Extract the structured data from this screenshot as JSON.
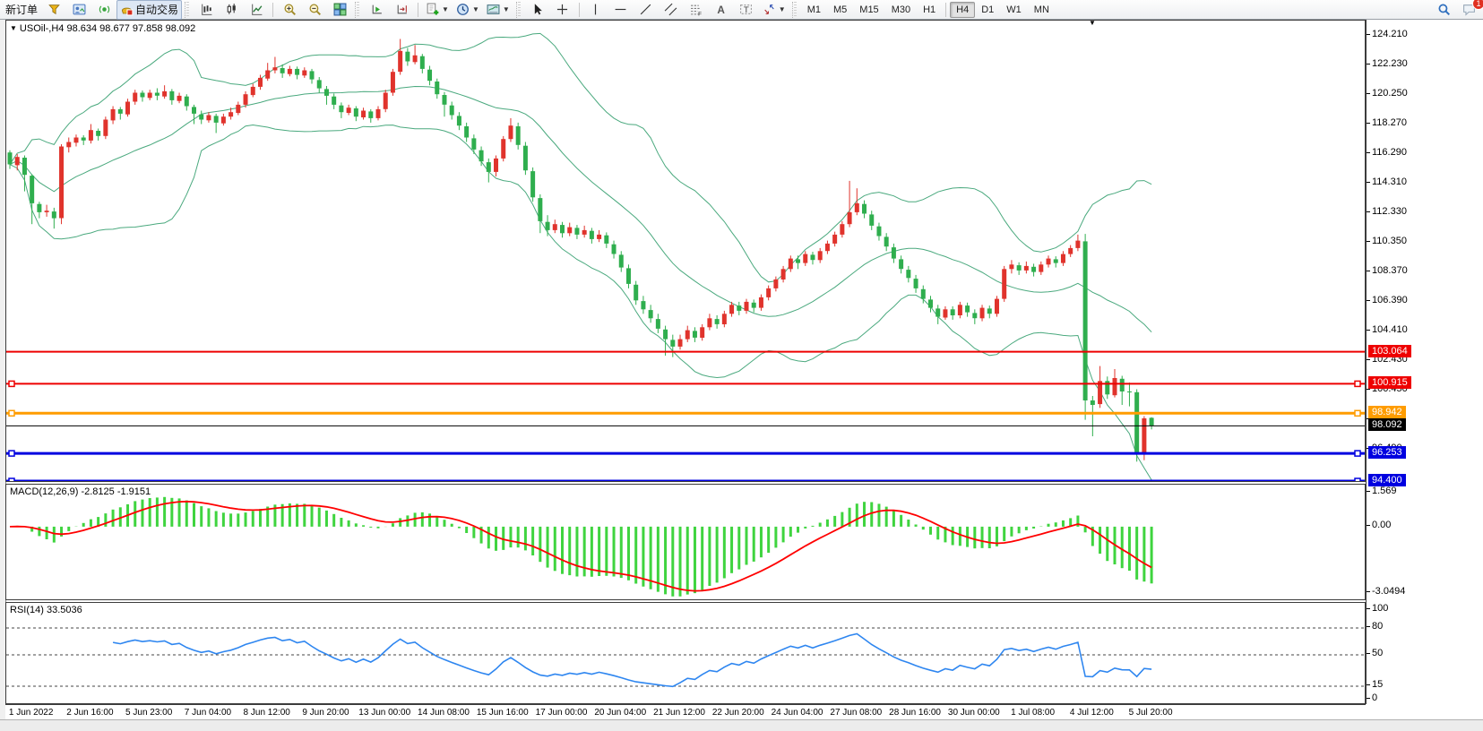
{
  "accent_colors": {
    "bull_candle": "#e0332c",
    "bear_candle": "#2fae4e",
    "bollinger": "#4aa97e",
    "macd_histogram": "#3fd43f",
    "macd_signal": "#ff0000",
    "rsi_line": "#2e86f0",
    "toolbar_bg": "#f2f2f2"
  },
  "toolbar": {
    "items": [
      {
        "name": "new-order-button",
        "label": "新订单"
      },
      {
        "name": "market-funnel-button",
        "icon": "funnel"
      },
      {
        "name": "profile-chart-button",
        "icon": "profile"
      },
      {
        "name": "broadcast-button",
        "icon": "broadcast"
      },
      {
        "name": "autotrading-button",
        "icon": "autotrade",
        "label": "自动交易",
        "active": true
      },
      {
        "grip": true
      },
      {
        "name": "bar-chart-button",
        "icon": "bars"
      },
      {
        "name": "candlestick-chart-button",
        "icon": "candles"
      },
      {
        "name": "line-chart-button",
        "icon": "linechart"
      },
      {
        "sep": true
      },
      {
        "name": "zoom-in-button",
        "icon": "zoomin"
      },
      {
        "name": "zoom-out-button",
        "icon": "zoomout"
      },
      {
        "name": "tile-windows-button",
        "icon": "tiles"
      },
      {
        "grip": true
      },
      {
        "name": "auto-scroll-button",
        "icon": "autoscroll"
      },
      {
        "name": "chart-shift-button",
        "icon": "chartshift"
      },
      {
        "sep": true
      },
      {
        "name": "indicators-button",
        "icon": "addind",
        "dropdown": true
      },
      {
        "name": "periods-button",
        "icon": "clock",
        "dropdown": true
      },
      {
        "name": "templates-button",
        "icon": "template",
        "dropdown": true
      },
      {
        "grip": true
      },
      {
        "name": "cursor-button",
        "icon": "cursor"
      },
      {
        "name": "crosshair-button",
        "icon": "crosshair"
      },
      {
        "sep": true
      },
      {
        "name": "vertical-line-button",
        "icon": "vline"
      },
      {
        "name": "horizontal-line-button",
        "icon": "hline"
      },
      {
        "name": "trendline-button",
        "icon": "trend"
      },
      {
        "name": "equidistant-channel-button",
        "icon": "channel"
      },
      {
        "name": "fibonacci-button",
        "icon": "fibo"
      },
      {
        "name": "text-button",
        "icon": "textA"
      },
      {
        "name": "text-label-button",
        "icon": "labelT"
      },
      {
        "name": "arrows-button",
        "icon": "arrows",
        "dropdown": true
      },
      {
        "grip": true
      },
      {
        "tf": "M1"
      },
      {
        "tf": "M5"
      },
      {
        "tf": "M15"
      },
      {
        "tf": "M30"
      },
      {
        "tf": "H1"
      },
      {
        "sep": true
      },
      {
        "tf": "H4",
        "active": true
      },
      {
        "tf": "D1"
      },
      {
        "tf": "W1"
      },
      {
        "tf": "MN"
      },
      {
        "spacer": true
      },
      {
        "name": "search-button",
        "icon": "search"
      },
      {
        "name": "notifications-button",
        "icon": "chat",
        "badge": "1"
      }
    ]
  },
  "chart": {
    "title_line": "USOil-,H4  98.634 98.677 97.858 98.092",
    "symbol": "USOil-",
    "timeframe": "H4"
  },
  "chart_data": {
    "type": "candlestick",
    "title": "USOil-,H4",
    "ohlc_display": {
      "open": "98.634",
      "high": "98.677",
      "low": "97.858",
      "close": "98.092"
    },
    "price_axis_ticks": [
      "124.210",
      "122.230",
      "120.250",
      "118.270",
      "116.290",
      "114.310",
      "112.330",
      "110.350",
      "108.370",
      "106.390",
      "104.410",
      "102.430",
      "100.450",
      "98.470",
      "96.490"
    ],
    "price_axis": {
      "top_price": 125.23,
      "bottom_price": 94.4,
      "tick_start": 124.21,
      "tick_step": 1.98
    },
    "hlines": [
      {
        "price": 103.064,
        "label": "103.064",
        "color": "#ee0000",
        "width": 2
      },
      {
        "price": 100.915,
        "label": "100.915",
        "color": "#ee0000",
        "width": 2,
        "marker": true
      },
      {
        "price": 98.942,
        "label": "98.942",
        "color": "#ff9c00",
        "width": 3,
        "marker": true
      },
      {
        "price": 98.092,
        "label": "98.092",
        "color": "#000000",
        "width": 1
      },
      {
        "price": 96.253,
        "label": "96.253",
        "color": "#0000e0",
        "width": 3,
        "marker": true
      },
      {
        "price": 94.4,
        "label": "94.400",
        "color": "#0000e0",
        "width": 3,
        "marker": true
      }
    ],
    "time_labels": [
      "1 Jun 2022",
      "2 Jun 16:00",
      "5 Jun 23:00",
      "7 Jun 04:00",
      "8 Jun 12:00",
      "9 Jun 20:00",
      "13 Jun 00:00",
      "14 Jun 08:00",
      "15 Jun 16:00",
      "17 Jun 00:00",
      "20 Jun 04:00",
      "21 Jun 12:00",
      "22 Jun 20:00",
      "24 Jun 04:00",
      "27 Jun 08:00",
      "28 Jun 16:00",
      "30 Jun 00:00",
      "1 Jul 08:00",
      "4 Jul 12:00",
      "5 Jul 20:00"
    ],
    "time_label_first_index": 3,
    "time_label_index_step": 8,
    "x_step": 8.22,
    "bollinger": {
      "period": 20,
      "deviation": 2
    },
    "macd": {
      "label_full": "MACD(12,26,9) -2.8125 -1.9151",
      "label": "MACD(12,26,9)",
      "macd_value": -2.8125,
      "signal_value": -1.9151,
      "params": [
        12,
        26,
        9
      ],
      "axis_labels": [
        {
          "v": 1.569,
          "t": "1.569"
        },
        {
          "v": 0,
          "t": "0.00"
        },
        {
          "v": -3.0494,
          "t": "-3.0494"
        }
      ],
      "range_top": 1.92,
      "range_bottom": -3.32
    },
    "rsi": {
      "label_full": "RSI(14) 33.5036",
      "label": "RSI(14)",
      "value": 33.5036,
      "period": 14,
      "axis_labels": [
        {
          "v": 100,
          "t": "100"
        },
        {
          "v": 80,
          "t": "80"
        },
        {
          "v": 50,
          "t": "50"
        },
        {
          "v": 15,
          "t": "15"
        },
        {
          "v": 0,
          "t": "0"
        }
      ],
      "dashed_levels": [
        80,
        50,
        15
      ],
      "range_top": 108,
      "range_bottom": -4
    },
    "candles": [
      [
        116.4,
        116.55,
        115.3,
        115.6
      ],
      [
        115.55,
        116.3,
        115.2,
        116.1
      ],
      [
        116.05,
        116.2,
        113.8,
        114.9
      ],
      [
        114.85,
        114.95,
        111.6,
        113.0
      ],
      [
        112.95,
        113.1,
        112.0,
        112.4
      ],
      [
        112.4,
        112.9,
        112.1,
        112.5
      ],
      [
        112.45,
        112.7,
        111.3,
        112.0
      ],
      [
        112.0,
        116.95,
        111.6,
        116.8
      ],
      [
        116.75,
        117.4,
        116.4,
        117.1
      ],
      [
        117.05,
        117.6,
        116.8,
        117.4
      ],
      [
        117.4,
        117.55,
        116.9,
        117.2
      ],
      [
        117.2,
        118.3,
        117.0,
        117.9
      ],
      [
        117.85,
        118.0,
        117.2,
        117.5
      ],
      [
        117.5,
        118.8,
        117.3,
        118.6
      ],
      [
        118.55,
        119.5,
        118.3,
        119.3
      ],
      [
        119.3,
        119.45,
        118.6,
        119.0
      ],
      [
        118.95,
        120.0,
        118.8,
        119.8
      ],
      [
        119.8,
        120.6,
        119.6,
        120.4
      ],
      [
        120.4,
        120.55,
        119.8,
        120.1
      ],
      [
        120.05,
        120.6,
        119.9,
        120.4
      ],
      [
        120.4,
        120.7,
        119.9,
        120.2
      ],
      [
        120.15,
        120.9,
        120.0,
        120.5
      ],
      [
        120.5,
        120.65,
        119.6,
        119.9
      ],
      [
        119.85,
        120.4,
        119.7,
        120.2
      ],
      [
        120.15,
        120.3,
        119.2,
        119.5
      ],
      [
        119.45,
        119.6,
        118.3,
        119.0
      ],
      [
        118.95,
        119.2,
        118.3,
        118.6
      ],
      [
        118.55,
        119.1,
        118.4,
        118.9
      ],
      [
        118.85,
        119.0,
        117.7,
        118.4
      ],
      [
        118.35,
        119.0,
        118.2,
        118.8
      ],
      [
        118.8,
        119.4,
        118.6,
        119.1
      ],
      [
        119.05,
        119.8,
        118.9,
        119.6
      ],
      [
        119.6,
        120.5,
        119.4,
        120.3
      ],
      [
        120.25,
        121.0,
        120.1,
        120.8
      ],
      [
        120.8,
        121.6,
        120.6,
        121.4
      ],
      [
        121.35,
        122.4,
        121.2,
        121.9
      ],
      [
        121.9,
        122.8,
        121.7,
        122.1
      ],
      [
        122.05,
        122.3,
        121.4,
        121.7
      ],
      [
        121.65,
        122.2,
        121.5,
        122.0
      ],
      [
        122.0,
        122.15,
        121.3,
        121.6
      ],
      [
        121.55,
        122.1,
        121.4,
        121.9
      ],
      [
        121.85,
        122.0,
        121.0,
        121.3
      ],
      [
        121.25,
        121.45,
        120.4,
        120.7
      ],
      [
        120.65,
        120.85,
        119.6,
        120.2
      ],
      [
        120.15,
        120.35,
        119.3,
        119.6
      ],
      [
        119.55,
        119.75,
        118.7,
        119.1
      ],
      [
        119.05,
        119.6,
        118.9,
        119.4
      ],
      [
        119.35,
        119.5,
        118.5,
        118.8
      ],
      [
        118.75,
        119.4,
        118.6,
        119.2
      ],
      [
        119.15,
        119.3,
        118.4,
        118.7
      ],
      [
        118.7,
        119.5,
        118.55,
        119.3
      ],
      [
        119.3,
        120.6,
        119.1,
        120.4
      ],
      [
        120.4,
        122.0,
        120.2,
        121.8
      ],
      [
        121.8,
        124.0,
        121.6,
        123.2
      ],
      [
        123.15,
        123.4,
        122.2,
        122.5
      ],
      [
        122.45,
        123.6,
        122.3,
        122.9
      ],
      [
        122.85,
        123.0,
        121.7,
        122.0
      ],
      [
        121.95,
        122.2,
        120.9,
        121.2
      ],
      [
        121.15,
        121.35,
        120.0,
        120.3
      ],
      [
        120.25,
        120.45,
        118.8,
        119.6
      ],
      [
        119.55,
        119.8,
        118.6,
        118.9
      ],
      [
        118.85,
        119.1,
        117.9,
        118.2
      ],
      [
        118.15,
        118.4,
        117.1,
        117.4
      ],
      [
        117.35,
        117.6,
        116.3,
        116.6
      ],
      [
        116.55,
        116.8,
        115.5,
        115.8
      ],
      [
        115.75,
        116.0,
        114.4,
        115.1
      ],
      [
        115.1,
        116.2,
        114.8,
        116.0
      ],
      [
        116.0,
        117.5,
        115.8,
        117.3
      ],
      [
        117.3,
        118.7,
        117.1,
        118.2
      ],
      [
        118.15,
        118.4,
        116.6,
        116.9
      ],
      [
        116.85,
        117.1,
        114.9,
        115.2
      ],
      [
        115.15,
        115.4,
        113.1,
        113.4
      ],
      [
        113.35,
        113.6,
        111.0,
        111.8
      ],
      [
        111.75,
        112.2,
        110.8,
        111.2
      ],
      [
        111.2,
        111.9,
        111.0,
        111.6
      ],
      [
        111.55,
        111.75,
        110.7,
        111.0
      ],
      [
        111.0,
        111.7,
        110.8,
        111.4
      ],
      [
        111.35,
        111.55,
        110.6,
        110.9
      ],
      [
        110.9,
        111.5,
        110.7,
        111.2
      ],
      [
        111.15,
        111.35,
        110.3,
        110.6
      ],
      [
        110.6,
        111.2,
        110.4,
        110.9
      ],
      [
        110.85,
        111.05,
        110.0,
        110.3
      ],
      [
        110.25,
        110.5,
        109.3,
        109.6
      ],
      [
        109.55,
        109.8,
        108.4,
        108.7
      ],
      [
        108.65,
        108.9,
        107.3,
        107.6
      ],
      [
        107.55,
        107.8,
        106.2,
        106.5
      ],
      [
        106.45,
        106.8,
        105.6,
        105.9
      ],
      [
        105.85,
        106.2,
        105.0,
        105.3
      ],
      [
        105.25,
        105.6,
        104.3,
        104.6
      ],
      [
        104.55,
        104.8,
        102.8,
        103.9
      ],
      [
        103.85,
        104.2,
        102.7,
        103.4
      ],
      [
        103.4,
        104.2,
        103.2,
        103.9
      ],
      [
        103.9,
        104.8,
        103.7,
        104.5
      ],
      [
        104.45,
        104.7,
        103.7,
        104.0
      ],
      [
        104.0,
        104.9,
        103.8,
        104.7
      ],
      [
        104.7,
        105.6,
        104.5,
        105.3
      ],
      [
        105.25,
        105.5,
        104.6,
        104.9
      ],
      [
        104.9,
        105.8,
        104.7,
        105.6
      ],
      [
        105.6,
        106.4,
        105.4,
        106.2
      ],
      [
        106.15,
        106.4,
        105.5,
        105.8
      ],
      [
        105.8,
        106.6,
        105.6,
        106.4
      ],
      [
        106.35,
        106.55,
        105.7,
        106.0
      ],
      [
        106.0,
        106.9,
        105.8,
        106.7
      ],
      [
        106.7,
        107.5,
        106.5,
        107.3
      ],
      [
        107.3,
        108.1,
        107.1,
        107.9
      ],
      [
        107.9,
        108.8,
        107.7,
        108.6
      ],
      [
        108.6,
        109.5,
        108.4,
        109.3
      ],
      [
        109.25,
        109.5,
        108.6,
        109.0
      ],
      [
        109.0,
        109.8,
        108.8,
        109.6
      ],
      [
        109.55,
        109.75,
        108.9,
        109.2
      ],
      [
        109.2,
        110.0,
        109.0,
        109.8
      ],
      [
        109.8,
        110.5,
        109.6,
        110.3
      ],
      [
        110.3,
        111.1,
        110.1,
        110.9
      ],
      [
        110.9,
        111.8,
        110.7,
        111.6
      ],
      [
        111.6,
        114.5,
        111.4,
        112.4
      ],
      [
        112.4,
        114.0,
        112.2,
        113.0
      ],
      [
        112.95,
        113.2,
        112.0,
        112.3
      ],
      [
        112.25,
        112.5,
        111.2,
        111.5
      ],
      [
        111.45,
        111.7,
        110.5,
        110.8
      ],
      [
        110.75,
        111.0,
        109.8,
        110.1
      ],
      [
        110.05,
        110.3,
        109.0,
        109.3
      ],
      [
        109.25,
        109.5,
        108.3,
        108.6
      ],
      [
        108.55,
        108.8,
        107.7,
        108.0
      ],
      [
        107.95,
        108.2,
        107.0,
        107.3
      ],
      [
        107.25,
        107.5,
        106.3,
        106.6
      ],
      [
        106.55,
        106.8,
        105.7,
        106.0
      ],
      [
        105.95,
        106.2,
        104.9,
        105.4
      ],
      [
        105.35,
        106.1,
        105.2,
        105.9
      ],
      [
        105.9,
        106.1,
        105.2,
        105.5
      ],
      [
        105.5,
        106.4,
        105.3,
        106.2
      ],
      [
        106.15,
        106.35,
        105.4,
        105.7
      ],
      [
        105.65,
        105.9,
        104.9,
        105.3
      ],
      [
        105.3,
        106.2,
        105.1,
        106.0
      ],
      [
        105.95,
        106.15,
        105.3,
        105.6
      ],
      [
        105.6,
        106.8,
        105.4,
        106.6
      ],
      [
        106.6,
        108.8,
        106.4,
        108.6
      ],
      [
        108.6,
        109.2,
        108.3,
        108.9
      ],
      [
        108.85,
        109.05,
        108.2,
        108.5
      ],
      [
        108.5,
        109.1,
        108.3,
        108.8
      ],
      [
        108.75,
        108.95,
        108.1,
        108.4
      ],
      [
        108.4,
        109.1,
        108.2,
        108.9
      ],
      [
        108.9,
        109.5,
        108.7,
        109.3
      ],
      [
        109.25,
        109.45,
        108.7,
        109.0
      ],
      [
        109.0,
        109.8,
        108.8,
        109.6
      ],
      [
        109.6,
        110.2,
        109.4,
        110.0
      ],
      [
        110.0,
        110.9,
        109.8,
        110.5
      ],
      [
        110.45,
        110.95,
        98.5,
        99.8
      ],
      [
        99.8,
        100.1,
        97.4,
        99.5
      ],
      [
        99.55,
        102.1,
        99.3,
        101.1
      ],
      [
        101.1,
        101.4,
        99.9,
        100.2
      ],
      [
        100.15,
        101.9,
        100.0,
        101.3
      ],
      [
        101.25,
        101.45,
        99.5,
        100.4
      ],
      [
        100.4,
        101.0,
        99.4,
        100.35
      ],
      [
        100.35,
        100.55,
        95.7,
        96.2
      ],
      [
        96.2,
        98.75,
        95.8,
        98.6
      ],
      [
        98.634,
        98.677,
        97.858,
        98.092
      ]
    ]
  }
}
